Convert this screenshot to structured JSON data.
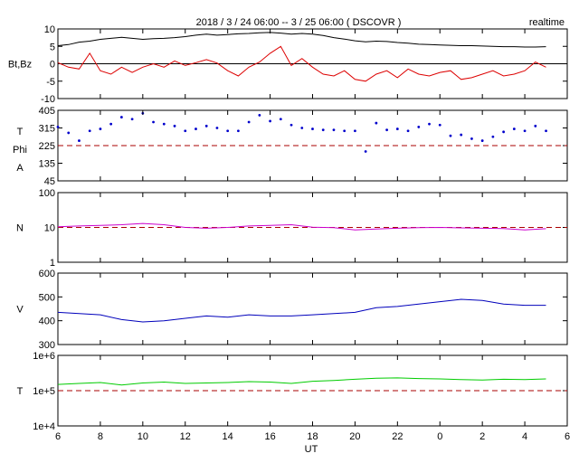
{
  "header": {
    "title": "2018 / 3 / 24   06:00 -- 3 / 25   06:00 ( DSCOVR )",
    "mode": "realtime"
  },
  "colors": {
    "bt": "#000000",
    "bz": "#dd0000",
    "phi": "#0000cc",
    "reference": "#aa0000",
    "density": "#cc00cc",
    "speed": "#0000bb",
    "temperature": "#00cc00"
  },
  "chart_data": {
    "type": "line",
    "xlabel": "UT",
    "x_ticks": [
      "6",
      "8",
      "10",
      "12",
      "14",
      "16",
      "18",
      "20",
      "22",
      "0",
      "2",
      "4",
      "6"
    ],
    "x_range_hours": [
      6,
      30
    ],
    "panels": [
      {
        "id": "bt_bz",
        "ylabel": "Bt,Bz",
        "scale": "linear",
        "ylim": [
          -10,
          10
        ],
        "yticks": [
          "10",
          "5",
          "0",
          "-5",
          "-10"
        ],
        "zero_line": 0,
        "series": [
          {
            "name": "Bt",
            "color": "bt",
            "x": [
              6,
              6.5,
              7,
              7.5,
              8,
              8.5,
              9,
              9.5,
              10,
              10.5,
              11,
              11.5,
              12,
              12.5,
              13,
              13.5,
              14,
              14.5,
              15,
              15.5,
              16,
              16.5,
              17,
              17.5,
              18,
              18.5,
              19,
              19.5,
              20,
              20.5,
              21,
              21.5,
              22,
              22.5,
              23,
              23.5,
              24,
              24.5,
              25,
              25.5,
              26,
              26.5,
              27,
              27.5,
              28,
              28.5,
              29
            ],
            "y": [
              5.2,
              5.5,
              6.2,
              6.5,
              7.0,
              7.3,
              7.6,
              7.3,
              7.0,
              7.2,
              7.3,
              7.5,
              7.8,
              8.2,
              8.5,
              8.2,
              8.4,
              8.6,
              8.7,
              8.9,
              9.0,
              8.8,
              8.5,
              8.7,
              8.5,
              8.1,
              7.5,
              7.1,
              6.6,
              6.3,
              6.5,
              6.4,
              6.1,
              5.9,
              5.6,
              5.5,
              5.4,
              5.3,
              5.2,
              5.2,
              5.1,
              5.0,
              4.9,
              4.9,
              4.8,
              4.8,
              4.9
            ]
          },
          {
            "name": "Bz",
            "color": "bz",
            "x": [
              6,
              6.5,
              7,
              7.5,
              8,
              8.5,
              9,
              9.5,
              10,
              10.5,
              11,
              11.5,
              12,
              12.5,
              13,
              13.5,
              14,
              14.5,
              15,
              15.5,
              16,
              16.5,
              17,
              17.5,
              18,
              18.5,
              19,
              19.5,
              20,
              20.5,
              21,
              21.5,
              22,
              22.5,
              23,
              23.5,
              24,
              24.5,
              25,
              25.5,
              26,
              26.5,
              27,
              27.5,
              28,
              28.5,
              29
            ],
            "y": [
              0.3,
              -1.0,
              -1.5,
              3.0,
              -2.0,
              -3.0,
              -1.0,
              -2.5,
              -1.0,
              0.0,
              -1.0,
              0.8,
              -0.5,
              0.3,
              1.2,
              0.2,
              -2.0,
              -3.5,
              -1.0,
              0.5,
              3.0,
              5.0,
              -0.5,
              1.5,
              -1.0,
              -3.0,
              -3.5,
              -2.0,
              -4.5,
              -5.0,
              -3.0,
              -2.0,
              -4.0,
              -1.5,
              -3.0,
              -3.5,
              -2.5,
              -2.0,
              -4.5,
              -4.0,
              -3.0,
              -2.0,
              -3.5,
              -3.0,
              -2.0,
              0.5,
              -1.0
            ]
          }
        ]
      },
      {
        "id": "phi",
        "ylabel_lines": [
          "T",
          "Phi",
          "A"
        ],
        "scale": "linear",
        "ylim": [
          45,
          405
        ],
        "yticks": [
          "405",
          "315",
          "225",
          "135",
          "45"
        ],
        "reference_line": 225,
        "series": [
          {
            "name": "Phi",
            "color": "phi",
            "style": "dots",
            "x": [
              6,
              6.5,
              7,
              7.5,
              8,
              8.5,
              9,
              9.5,
              10,
              10.5,
              11,
              11.5,
              12,
              12.5,
              13,
              13.5,
              14,
              14.5,
              15,
              15.5,
              16,
              16.5,
              17,
              17.5,
              18,
              18.5,
              19,
              19.5,
              20,
              20.5,
              21,
              21.5,
              22,
              22.5,
              23,
              23.5,
              24,
              24.5,
              25,
              25.5,
              26,
              26.5,
              27,
              27.5,
              28,
              28.5,
              29
            ],
            "y": [
              320,
              290,
              250,
              300,
              310,
              335,
              370,
              360,
              390,
              345,
              335,
              325,
              300,
              310,
              325,
              315,
              300,
              300,
              345,
              380,
              350,
              360,
              330,
              315,
              310,
              305,
              305,
              300,
              300,
              195,
              340,
              305,
              310,
              300,
              320,
              335,
              330,
              275,
              280,
              260,
              250,
              270,
              295,
              310,
              300,
              325,
              300
            ]
          }
        ]
      },
      {
        "id": "density",
        "ylabel": "N",
        "scale": "log",
        "ylim": [
          1,
          100
        ],
        "yticks": [
          "100",
          "10",
          "1"
        ],
        "reference_line": 10,
        "series": [
          {
            "name": "N",
            "color": "density",
            "x": [
              6,
              7,
              8,
              9,
              10,
              11,
              12,
              13,
              14,
              15,
              16,
              17,
              18,
              19,
              20,
              21,
              22,
              23,
              24,
              25,
              26,
              27,
              28,
              29
            ],
            "y": [
              10.5,
              11,
              11.5,
              12,
              13,
              12,
              10,
              9.5,
              10,
              11,
              11.5,
              12,
              10.2,
              9.8,
              8.5,
              9.0,
              9.5,
              9.8,
              10,
              9.7,
              9.5,
              9.3,
              8.5,
              9.2
            ]
          }
        ]
      },
      {
        "id": "speed",
        "ylabel": "V",
        "scale": "linear",
        "ylim": [
          300,
          600
        ],
        "yticks": [
          "600",
          "500",
          "400",
          "300"
        ],
        "series": [
          {
            "name": "V",
            "color": "speed",
            "x": [
              6,
              7,
              8,
              9,
              10,
              11,
              12,
              13,
              14,
              15,
              16,
              17,
              18,
              19,
              20,
              21,
              22,
              23,
              24,
              25,
              26,
              27,
              28,
              29
            ],
            "y": [
              435,
              430,
              425,
              405,
              395,
              400,
              410,
              420,
              415,
              425,
              420,
              420,
              425,
              430,
              435,
              455,
              460,
              470,
              480,
              490,
              485,
              470,
              465,
              465
            ]
          }
        ]
      },
      {
        "id": "temperature",
        "ylabel": "T",
        "scale": "log",
        "ylim": [
          10000,
          1000000
        ],
        "yticks": [
          "1e+6",
          "1e+5",
          "1e+4"
        ],
        "reference_line": 100000,
        "series": [
          {
            "name": "T",
            "color": "temperature",
            "x": [
              6,
              7,
              8,
              9,
              10,
              11,
              12,
              13,
              14,
              15,
              16,
              17,
              18,
              19,
              20,
              21,
              22,
              23,
              24,
              25,
              26,
              27,
              28,
              29
            ],
            "y": [
              150000,
              160000,
              170000,
              145000,
              165000,
              175000,
              160000,
              165000,
              170000,
              180000,
              175000,
              160000,
              185000,
              195000,
              210000,
              225000,
              230000,
              220000,
              215000,
              205000,
              200000,
              210000,
              205000,
              215000
            ]
          }
        ]
      }
    ]
  }
}
